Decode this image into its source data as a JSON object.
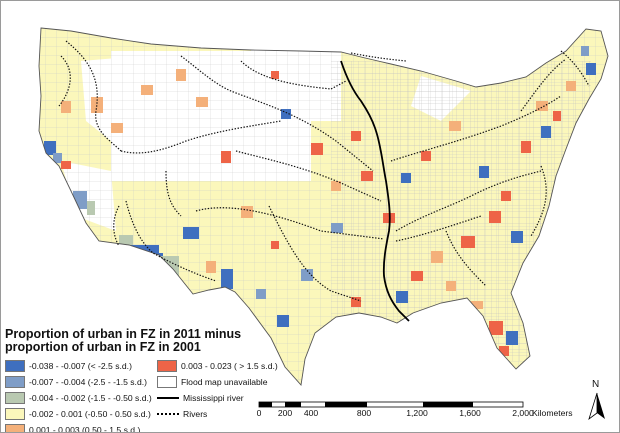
{
  "legend": {
    "title_line1": "Proportion of urban in FZ in 2011 minus",
    "title_line2": "proportion of urban in FZ in 2001",
    "items": [
      {
        "label": "-0.038 - -0.007 (< -2.5 s.d.)",
        "color": "#3f6fbf"
      },
      {
        "label": "-0.007 - -0.004 (-2.5 - -1.5 s.d.)",
        "color": "#7f9dc7"
      },
      {
        "label": "-0.004 - -0.002 (-1.5 - -0.50 s.d.)",
        "color": "#b9c9b1"
      },
      {
        "label": "-0.002 - 0.001 (-0.50 - 0.50 s.d.)",
        "color": "#fbf7bb"
      },
      {
        "label": "0.001 - 0.003 (0.50 - 1.5 s.d.)",
        "color": "#f4b07a"
      },
      {
        "label": "0.003 - 0.023 ( > 1.5 s.d.)",
        "color": "#ee6447"
      },
      {
        "label": "Flood map unavailable",
        "color": "#ffffff"
      }
    ],
    "mississippi_label": "Mississippi river",
    "rivers_label": "Rivers"
  },
  "scale_bar": {
    "labels": [
      "0",
      "200",
      "400",
      "800",
      "1,200",
      "1,600",
      "2,000"
    ],
    "unit": "Kilometers"
  },
  "north_arrow": {
    "letter": "N"
  }
}
